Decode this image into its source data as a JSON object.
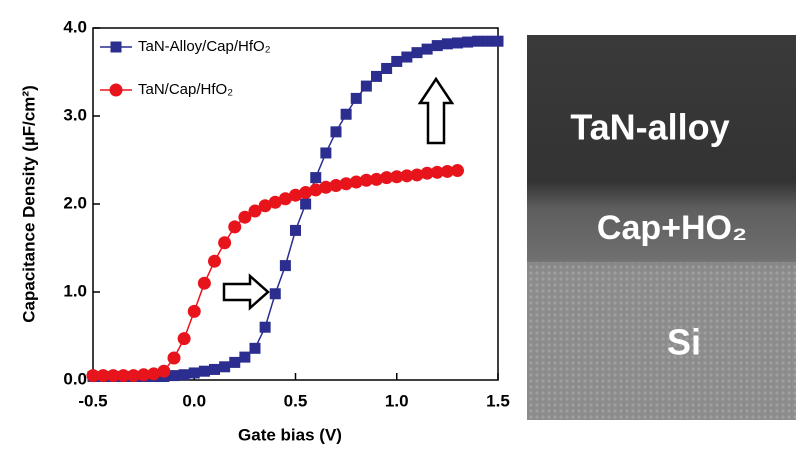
{
  "chart_data": {
    "type": "line",
    "xlabel": "Gate bias (V)",
    "ylabel": "Capacitance Density (µF/cm²)",
    "xlim": [
      -0.5,
      1.5
    ],
    "ylim": [
      0,
      4
    ],
    "xticks": [
      -0.5,
      {
        "value": 0,
        "label": "0.0"
      },
      0.5,
      {
        "value": 1,
        "label": "1.0"
      },
      1.5
    ],
    "yticks": [
      {
        "value": 0,
        "label": "0.0"
      },
      {
        "value": 1,
        "label": "1.0"
      },
      {
        "value": 2,
        "label": "2.0"
      },
      {
        "value": 3,
        "label": "3.0"
      },
      {
        "value": 4,
        "label": "4.0"
      }
    ],
    "series": [
      {
        "name": "TaN-Alloy/Cap/HfO₂",
        "color": "#2b2d8f",
        "marker": "square",
        "x": [
          -0.5,
          -0.45,
          -0.4,
          -0.35,
          -0.3,
          -0.25,
          -0.2,
          -0.15,
          -0.1,
          -0.05,
          0,
          0.05,
          0.1,
          0.15,
          0.2,
          0.25,
          0.3,
          0.35,
          0.4,
          0.45,
          0.5,
          0.55,
          0.6,
          0.65,
          0.7,
          0.75,
          0.8,
          0.85,
          0.9,
          0.95,
          1,
          1.05,
          1.1,
          1.15,
          1.2,
          1.25,
          1.3,
          1.35,
          1.4,
          1.45,
          1.5
        ],
        "values": [
          0.04,
          0.04,
          0.04,
          0.04,
          0.04,
          0.04,
          0.04,
          0.04,
          0.05,
          0.06,
          0.08,
          0.1,
          0.12,
          0.15,
          0.2,
          0.26,
          0.36,
          0.6,
          0.98,
          1.3,
          1.7,
          2.0,
          2.3,
          2.58,
          2.82,
          3.02,
          3.2,
          3.34,
          3.45,
          3.54,
          3.62,
          3.67,
          3.72,
          3.76,
          3.8,
          3.82,
          3.83,
          3.84,
          3.85,
          3.85,
          3.85
        ]
      },
      {
        "name": "TaN/Cap/HfO₂",
        "color": "#e8141b",
        "marker": "circle",
        "x": [
          -0.5,
          -0.45,
          -0.4,
          -0.35,
          -0.3,
          -0.25,
          -0.2,
          -0.15,
          -0.1,
          -0.05,
          0,
          0.05,
          0.1,
          0.15,
          0.2,
          0.25,
          0.3,
          0.35,
          0.4,
          0.45,
          0.5,
          0.55,
          0.6,
          0.65,
          0.7,
          0.75,
          0.8,
          0.85,
          0.9,
          0.95,
          1,
          1.05,
          1.1,
          1.15,
          1.2,
          1.25,
          1.3
        ],
        "values": [
          0.05,
          0.05,
          0.05,
          0.05,
          0.05,
          0.06,
          0.07,
          0.1,
          0.25,
          0.47,
          0.78,
          1.1,
          1.35,
          1.56,
          1.74,
          1.85,
          1.92,
          1.98,
          2.02,
          2.06,
          2.1,
          2.13,
          2.16,
          2.19,
          2.21,
          2.23,
          2.25,
          2.27,
          2.28,
          2.3,
          2.31,
          2.32,
          2.33,
          2.35,
          2.36,
          2.37,
          2.38
        ]
      }
    ]
  },
  "image": {
    "labels": [
      "TaN-alloy",
      "Cap+HO₂",
      "Si"
    ]
  }
}
